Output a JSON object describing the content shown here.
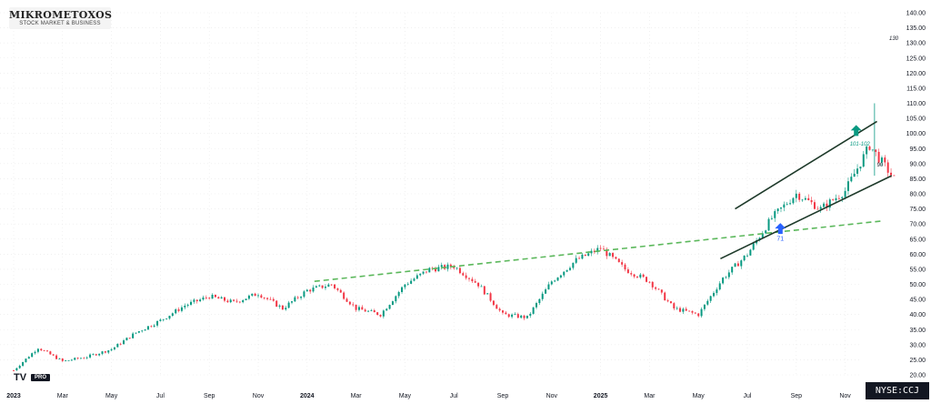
{
  "brand": {
    "title": "MIKROMETOXOS",
    "subtitle": "STOCK MARKET & BUSINESS"
  },
  "watermark": {
    "logo": "TV",
    "badge": "PRO"
  },
  "ticker": "NYSE:CCJ",
  "chart_data": {
    "type": "candlestick",
    "symbol": "NYSE:CCJ",
    "ylim": [
      20,
      140
    ],
    "y_ticks": [
      "20.00",
      "25.00",
      "30.00",
      "35.00",
      "40.00",
      "45.00",
      "50.00",
      "55.00",
      "60.00",
      "65.00",
      "70.00",
      "75.00",
      "80.00",
      "85.00",
      "90.00",
      "95.00",
      "100.00",
      "105.00",
      "110.00",
      "115.00",
      "120.00",
      "125.00",
      "130.00",
      "135.00",
      "140.00"
    ],
    "x_ticks": [
      "2023",
      "Mar",
      "May",
      "Jul",
      "Sep",
      "Nov",
      "2024",
      "Mar",
      "May",
      "Jul",
      "Sep",
      "Nov",
      "2025",
      "Mar",
      "May",
      "Jul",
      "Sep",
      "Nov"
    ],
    "x_tick_index": [
      0,
      2,
      4,
      6,
      8,
      10,
      12,
      14,
      16,
      18,
      20,
      22,
      24,
      26,
      28,
      30,
      32,
      34
    ],
    "price_path": [
      [
        0,
        21.5
      ],
      [
        1,
        29
      ],
      [
        2,
        24.5
      ],
      [
        3,
        26
      ],
      [
        4,
        28.5
      ],
      [
        5,
        34
      ],
      [
        6,
        38
      ],
      [
        7,
        43
      ],
      [
        8,
        46
      ],
      [
        9,
        44
      ],
      [
        10,
        47
      ],
      [
        11,
        42
      ],
      [
        12,
        48
      ],
      [
        13,
        50
      ],
      [
        14,
        42
      ],
      [
        15,
        40
      ],
      [
        16,
        50
      ],
      [
        17,
        55
      ],
      [
        18,
        56
      ],
      [
        19,
        50
      ],
      [
        20,
        40
      ],
      [
        21,
        39
      ],
      [
        22,
        51
      ],
      [
        23,
        58
      ],
      [
        24,
        62
      ],
      [
        25,
        55
      ],
      [
        26,
        51
      ],
      [
        27,
        42
      ],
      [
        28,
        40
      ],
      [
        29,
        52
      ],
      [
        30,
        60
      ],
      [
        31,
        72
      ],
      [
        32,
        80
      ],
      [
        33,
        75
      ],
      [
        34,
        81
      ],
      [
        35,
        96
      ],
      [
        36,
        85
      ]
    ],
    "annotations": [
      {
        "label": "130",
        "color": "#131722"
      },
      {
        "label": "101-102",
        "color": "#089981"
      },
      {
        "label": "90",
        "color": "#131722"
      },
      {
        "label": "71",
        "color": "#2962ff"
      }
    ],
    "trendlines": [
      {
        "style": "dashed",
        "color": "#5cb85c",
        "from": [
          12.3,
          51
        ],
        "to": [
          35.5,
          71
        ]
      },
      {
        "style": "solid",
        "color": "#1e3a2a",
        "from": [
          29.5,
          75
        ],
        "to": [
          35.3,
          104
        ]
      },
      {
        "style": "solid",
        "color": "#1e3a2a",
        "from": [
          28.9,
          58.5
        ],
        "to": [
          35.9,
          86
        ]
      }
    ],
    "colors": {
      "up": "#089981",
      "down": "#f23645",
      "grid": "#e8e8e8",
      "axis_text": "#131722"
    }
  }
}
